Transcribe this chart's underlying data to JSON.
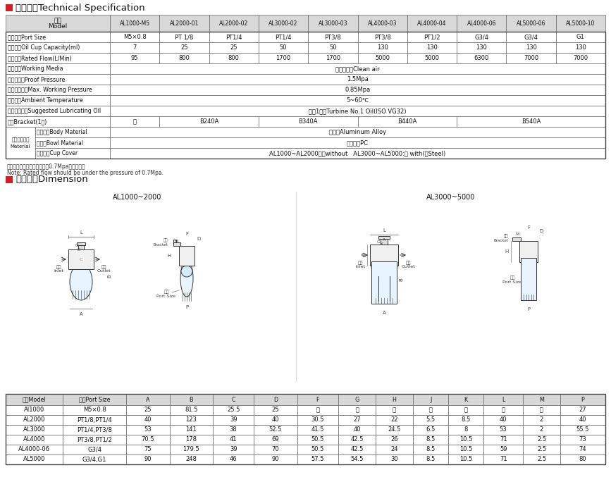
{
  "title1": "技术参数Technical Specification",
  "title2": "外型尺寸Dimension",
  "note1": "注：额定流量是在供应压力为0.7Mpa的情况下。",
  "note2": "Note: Rated flow should be under the pressure of 0.7Mpa.",
  "spec_header": [
    "AL1000-M5",
    "AL2000-01",
    "AL2000-02",
    "AL3000-02",
    "AL3000-03",
    "AL4000-03",
    "AL4000-04",
    "AL4000-06",
    "AL5000-06",
    "AL5000-10"
  ],
  "spec_rows": [
    [
      "接管口径Port Size",
      "M5×0.8",
      "PT 1/8",
      "PT1/4",
      "PT1/4",
      "PT3/8",
      "PT3/8",
      "PT1/2",
      "G3/4",
      "G3/4",
      "G1"
    ],
    [
      "油杯容量Oil Cup Capacity(ml)",
      "7",
      "25",
      "25",
      "50",
      "50",
      "130",
      "130",
      "130",
      "130",
      "130"
    ],
    [
      "额定流量Rated Flow(L/Min)",
      "95",
      "800",
      "800",
      "1700",
      "1700",
      "5000",
      "5000",
      "6300",
      "7000",
      "7000"
    ],
    [
      "工作介质Working Media",
      "洁净的空气Clean air",
      "",
      "",
      "",
      "",
      "",
      "",
      "",
      "",
      ""
    ],
    [
      "保证耐压力Proof Pressure",
      "1.5Mpa",
      "",
      "",
      "",
      "",
      "",
      "",
      "",
      "",
      ""
    ],
    [
      "最高使用压力Max. Working Pressure",
      "0.85Mpa",
      "",
      "",
      "",
      "",
      "",
      "",
      "",
      "",
      ""
    ],
    [
      "环境温度Ambient Temperature",
      "5~60℃",
      "",
      "",
      "",
      "",
      "",
      "",
      "",
      "",
      ""
    ],
    [
      "建议润滑用油Suggested Lubricating Oil",
      "透平1号油Turbine No.1 Oil(ISO VG32)",
      "",
      "",
      "",
      "",
      "",
      "",
      "",
      "",
      ""
    ],
    [
      "托架Bracket(1个)",
      "－",
      "B240A",
      "",
      "B340A",
      "",
      "",
      "B440A",
      "",
      "",
      "B540A"
    ],
    [
      "本体材质Body Material",
      "铝合金Aluminum Alloy"
    ],
    [
      "杯材质Bowl Material",
      "聚碳酸脂PC"
    ],
    [
      "杯防护罩Cup Cover",
      "AL1000~AL2000：无without   AL3000~AL5000:有 with(铁Steel)"
    ]
  ],
  "dim_header": [
    "型号Model",
    "口径Port Size",
    "A",
    "B",
    "C",
    "D",
    "F",
    "G",
    "H",
    "J",
    "K",
    "L",
    "M",
    "P"
  ],
  "dim_rows": [
    [
      "AI1000",
      "M5×0.8",
      "25",
      "81.5",
      "25.5",
      "25",
      "－",
      "－",
      "－",
      "－",
      "－",
      "－",
      "－",
      "27"
    ],
    [
      "AL2000",
      "PT1/8,PT1/4",
      "40",
      "123",
      "39",
      "40",
      "30.5",
      "27",
      "22",
      "5.5",
      "8.5",
      "40",
      "2",
      "40"
    ],
    [
      "AL3000",
      "PT1/4,PT3/8",
      "53",
      "141",
      "38",
      "52.5",
      "41.5",
      "40",
      "24.5",
      "6.5",
      "8",
      "53",
      "2",
      "55.5"
    ],
    [
      "AL4000",
      "PT3/8,PT1/2",
      "70.5",
      "178",
      "41",
      "69",
      "50.5",
      "42.5",
      "26",
      "8.5",
      "10.5",
      "71",
      "2.5",
      "73"
    ],
    [
      "AL4000-06",
      "G3/4",
      "75",
      "179.5",
      "39",
      "70",
      "50.5",
      "42.5",
      "24",
      "8.5",
      "10.5",
      "59",
      "2.5",
      "74"
    ],
    [
      "AL5000",
      "G3/4,G1",
      "90",
      "248",
      "46",
      "90",
      "57.5",
      "54.5",
      "30",
      "8.5",
      "10.5",
      "71",
      "2.5",
      "80"
    ]
  ],
  "bg_color": "#ffffff",
  "header_bg": "#d8d8d8",
  "title_marker_color": "#cc2222"
}
